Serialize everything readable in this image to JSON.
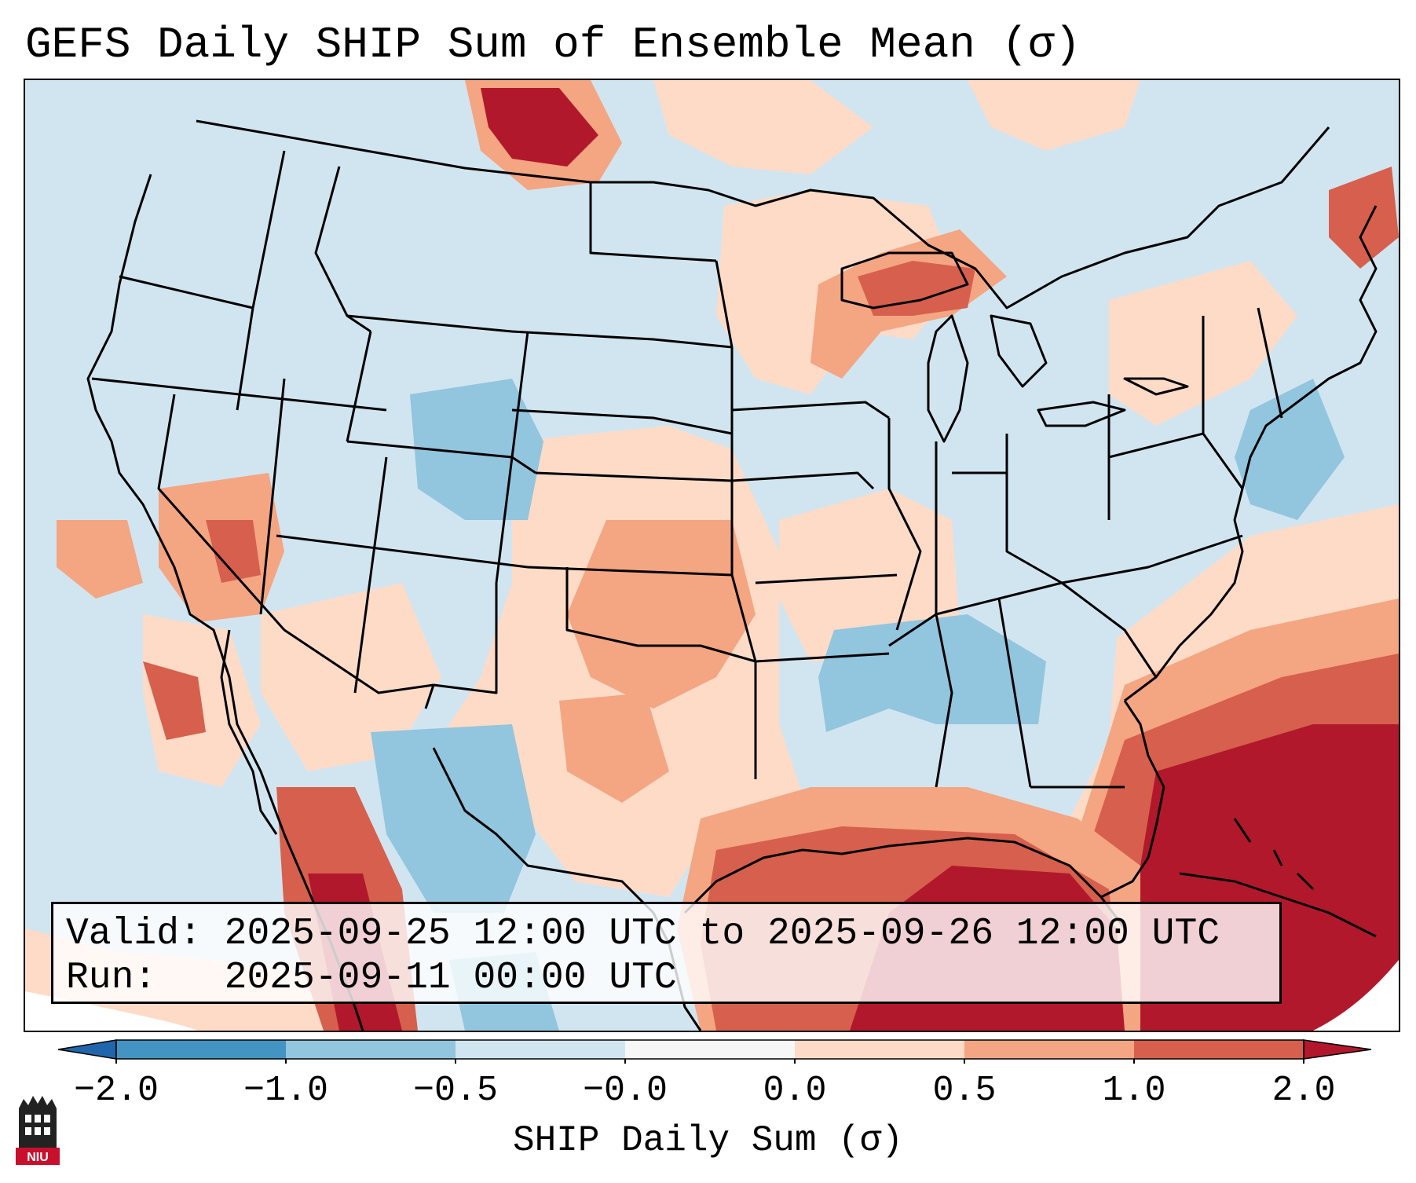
{
  "title": "GEFS Daily SHIP Sum of Ensemble Mean (σ)",
  "info": {
    "valid_label": "Valid:",
    "valid_value": "2025-09-25 12:00 UTC to 2025-09-26 12:00 UTC",
    "run_label": "Run:",
    "run_value": "2025-09-11 00:00 UTC"
  },
  "colorbar": {
    "label": "SHIP Daily Sum (σ)",
    "ticks": [
      "−2.0",
      "−1.0",
      "−0.5",
      "−0.0",
      "0.0",
      "0.5",
      "1.0",
      "2.0"
    ],
    "bins": [
      {
        "range": "< -2.0",
        "color": "#2166ac"
      },
      {
        "range": "-2.0 to -1.0",
        "color": "#4393c3"
      },
      {
        "range": "-1.0 to -0.5",
        "color": "#92c5de"
      },
      {
        "range": "-0.5 to -0.0",
        "color": "#d1e5f0"
      },
      {
        "range": "-0.0 to 0.0",
        "color": "#f7f7f7"
      },
      {
        "range": "0.0 to 0.5",
        "color": "#fddbc7"
      },
      {
        "range": "0.5 to 1.0",
        "color": "#f4a582"
      },
      {
        "range": "1.0 to 2.0",
        "color": "#d6604d"
      },
      {
        "range": "> 2.0",
        "color": "#b2182b"
      }
    ],
    "extend": "both"
  },
  "logo": {
    "text": "NIU"
  }
}
